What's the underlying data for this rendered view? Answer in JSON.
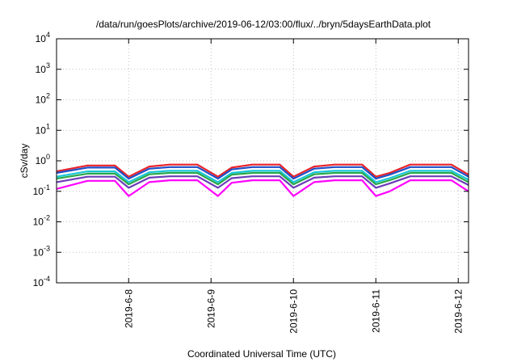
{
  "chart_data": {
    "type": "line",
    "title": "/data/run/goesPlots/archive/2019-06-12/03:00/flux/../bryn/5daysEarthData.plot",
    "xlabel": "Coordinated Universal Time (UTC)",
    "ylabel": "cSv/day",
    "yscale": "log",
    "ylim": [
      0.0001,
      10000
    ],
    "y_ticks": [
      {
        "base": "10",
        "exp": "-4",
        "value": 0.0001
      },
      {
        "base": "10",
        "exp": "-3",
        "value": 0.001
      },
      {
        "base": "10",
        "exp": "-2",
        "value": 0.01
      },
      {
        "base": "10",
        "exp": "-1",
        "value": 0.1
      },
      {
        "base": "10",
        "exp": "0",
        "value": 1
      },
      {
        "base": "10",
        "exp": "1",
        "value": 10
      },
      {
        "base": "10",
        "exp": "2",
        "value": 100
      },
      {
        "base": "10",
        "exp": "3",
        "value": 1000
      },
      {
        "base": "10",
        "exp": "4",
        "value": 10000
      }
    ],
    "xlim": [
      "2019-06-07T03:00",
      "2019-06-12T03:00"
    ],
    "x_ticks": [
      {
        "label": "2019-6-8",
        "value": "2019-06-08T00:00"
      },
      {
        "label": "2019-6-9",
        "value": "2019-06-09T00:00"
      },
      {
        "label": "2019-6-10",
        "value": "2019-06-10T00:00"
      },
      {
        "label": "2019-6-11",
        "value": "2019-06-11T00:00"
      },
      {
        "label": "2019-6-12",
        "value": "2019-06-12T00:00"
      }
    ],
    "grid": true,
    "legend": "none",
    "x": [
      "2019-06-07T03:00",
      "2019-06-07T12:00",
      "2019-06-07T20:00",
      "2019-06-08T00:00",
      "2019-06-08T06:00",
      "2019-06-08T12:00",
      "2019-06-08T20:00",
      "2019-06-09T02:00",
      "2019-06-09T06:00",
      "2019-06-09T12:00",
      "2019-06-09T20:00",
      "2019-06-10T00:00",
      "2019-06-10T06:00",
      "2019-06-10T12:00",
      "2019-06-10T20:00",
      "2019-06-11T00:00",
      "2019-06-11T04:00",
      "2019-06-11T10:00",
      "2019-06-11T16:00",
      "2019-06-11T22:00",
      "2019-06-12T03:00"
    ],
    "series": [
      {
        "color": "#e8232a",
        "values": [
          0.45,
          0.7,
          0.7,
          0.3,
          0.65,
          0.75,
          0.75,
          0.3,
          0.6,
          0.75,
          0.75,
          0.3,
          0.65,
          0.75,
          0.75,
          0.3,
          0.4,
          0.75,
          0.75,
          0.75,
          0.35
        ]
      },
      {
        "color": "#1f4fc8",
        "values": [
          0.4,
          0.6,
          0.6,
          0.26,
          0.55,
          0.62,
          0.62,
          0.26,
          0.52,
          0.62,
          0.62,
          0.26,
          0.55,
          0.62,
          0.62,
          0.26,
          0.35,
          0.62,
          0.62,
          0.62,
          0.3
        ]
      },
      {
        "color": "#19c6d8",
        "values": [
          0.3,
          0.45,
          0.45,
          0.2,
          0.42,
          0.47,
          0.47,
          0.2,
          0.4,
          0.47,
          0.47,
          0.2,
          0.42,
          0.47,
          0.47,
          0.2,
          0.27,
          0.47,
          0.47,
          0.47,
          0.24
        ]
      },
      {
        "color": "#2aa84a",
        "values": [
          0.26,
          0.38,
          0.38,
          0.17,
          0.36,
          0.4,
          0.4,
          0.17,
          0.35,
          0.4,
          0.4,
          0.17,
          0.36,
          0.4,
          0.4,
          0.17,
          0.23,
          0.4,
          0.4,
          0.4,
          0.2
        ]
      },
      {
        "color": "#6a3db8",
        "values": [
          0.2,
          0.3,
          0.3,
          0.13,
          0.28,
          0.31,
          0.31,
          0.13,
          0.27,
          0.31,
          0.31,
          0.13,
          0.28,
          0.31,
          0.31,
          0.13,
          0.18,
          0.31,
          0.31,
          0.31,
          0.16
        ]
      },
      {
        "color": "#ff00ff",
        "values": [
          0.12,
          0.22,
          0.22,
          0.07,
          0.2,
          0.23,
          0.23,
          0.07,
          0.19,
          0.23,
          0.23,
          0.07,
          0.2,
          0.23,
          0.23,
          0.07,
          0.1,
          0.23,
          0.23,
          0.23,
          0.1
        ]
      }
    ]
  }
}
